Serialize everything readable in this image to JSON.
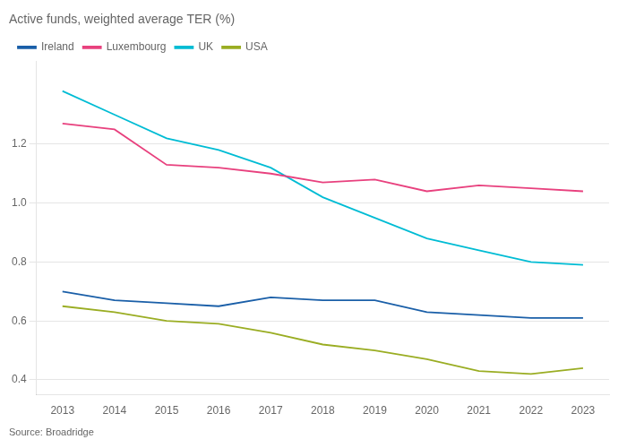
{
  "chart_data": {
    "type": "line",
    "title": "Active funds, weighted average TER (%)",
    "annotations": [
      "Source: Broadridge"
    ],
    "x": [
      2013,
      2014,
      2015,
      2016,
      2017,
      2018,
      2019,
      2020,
      2021,
      2022,
      2023
    ],
    "series": [
      {
        "name": "Ireland",
        "color": "#1a5fa8",
        "values": [
          0.7,
          0.67,
          0.66,
          0.65,
          0.68,
          0.67,
          0.67,
          0.63,
          0.62,
          0.61,
          0.61
        ]
      },
      {
        "name": "Luxembourg",
        "color": "#e8417e",
        "values": [
          1.27,
          1.25,
          1.13,
          1.12,
          1.1,
          1.07,
          1.08,
          1.04,
          1.06,
          1.05,
          1.04
        ]
      },
      {
        "name": "UK",
        "color": "#00bcd4",
        "values": [
          1.38,
          1.3,
          1.22,
          1.18,
          1.12,
          1.02,
          0.95,
          0.88,
          0.84,
          0.8,
          0.79
        ]
      },
      {
        "name": "USA",
        "color": "#9aad23",
        "values": [
          0.65,
          0.63,
          0.6,
          0.59,
          0.56,
          0.52,
          0.5,
          0.47,
          0.43,
          0.42,
          0.44
        ]
      }
    ],
    "xlim": [
      2012.5,
      2023.5
    ],
    "xticks": [
      2013,
      2014,
      2015,
      2016,
      2017,
      2018,
      2019,
      2020,
      2021,
      2022,
      2023
    ],
    "ylim": [
      0.35,
      1.48
    ],
    "yticks": [
      0.4,
      0.6,
      0.8,
      {
        "value": 1.0,
        "label": "1.0"
      },
      1.2
    ],
    "grid": "y",
    "legend": "top"
  }
}
